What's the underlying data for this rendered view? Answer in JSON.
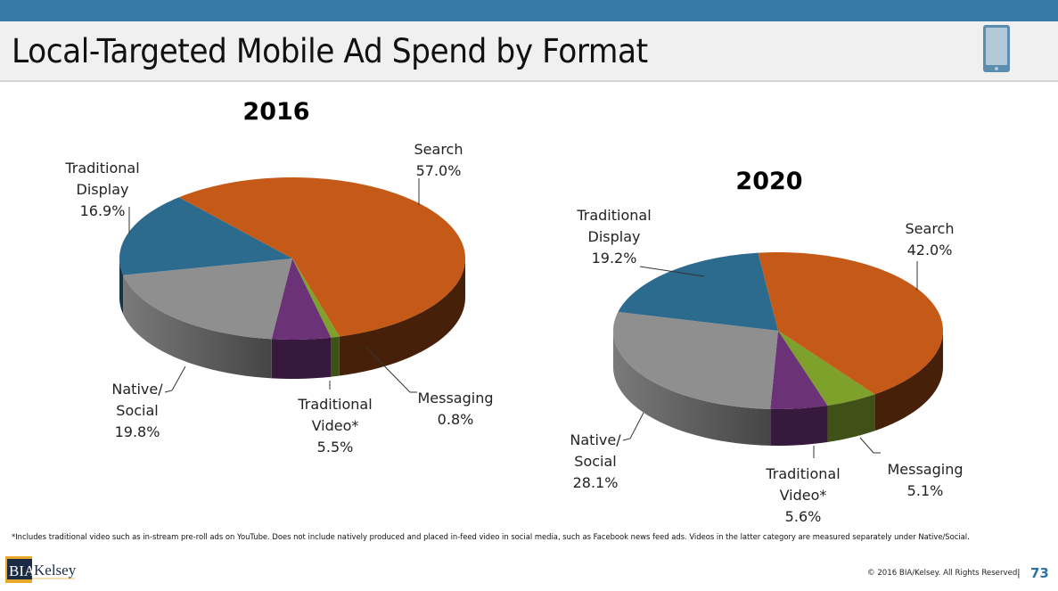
{
  "slide": {
    "title": "Local-Targeted Mobile Ad Spend by Format",
    "header_icon": "mobile-phone-icon",
    "footnote": "*Includes traditional video such as in-stream pre-roll ads on YouTube. Does not include natively produced and placed in-feed video in social media, such as Facebook news feed ads. Videos in the latter category are measured separately under Native/Social.",
    "logo": {
      "left": "BIA",
      "right": "Kelsey"
    },
    "copyright": "© 2016 BIA/Kelsey. All Rights Reserved.",
    "separator": "|",
    "page_number": "73",
    "colors": {
      "topbar": "#367aa8",
      "accent": "#2f72a6"
    }
  },
  "chart_data": [
    {
      "type": "pie",
      "title": "2016",
      "categories": [
        "Search",
        "Messaging",
        "Traditional Video*",
        "Native/ Social",
        "Traditional Display"
      ],
      "values": [
        57.0,
        0.8,
        5.5,
        19.8,
        16.9
      ],
      "labels": [
        {
          "lines": [
            "Search",
            "57.0%"
          ]
        },
        {
          "lines": [
            "Messaging",
            "0.8%"
          ]
        },
        {
          "lines": [
            "Traditional",
            "Video*",
            "5.5%"
          ]
        },
        {
          "lines": [
            "Native/",
            "Social",
            "19.8%"
          ]
        },
        {
          "lines": [
            "Traditional",
            "Display",
            "16.9%"
          ]
        }
      ],
      "colors": [
        "#c55a18",
        "#7ea12b",
        "#6c3277",
        "#8f8f8f",
        "#2c6a8e"
      ],
      "style": "3d"
    },
    {
      "type": "pie",
      "title": "2020",
      "categories": [
        "Search",
        "Messaging",
        "Traditional Video*",
        "Native/ Social",
        "Traditional Display"
      ],
      "values": [
        42.0,
        5.1,
        5.6,
        28.1,
        19.2
      ],
      "labels": [
        {
          "lines": [
            "Search",
            "42.0%"
          ]
        },
        {
          "lines": [
            "Messaging",
            "5.1%"
          ]
        },
        {
          "lines": [
            "Traditional",
            "Video*",
            "5.6%"
          ]
        },
        {
          "lines": [
            "Native/",
            "Social",
            "28.1%"
          ]
        },
        {
          "lines": [
            "Traditional",
            "Display",
            "19.2%"
          ]
        }
      ],
      "colors": [
        "#c55a18",
        "#7ea12b",
        "#6c3277",
        "#8f8f8f",
        "#2c6a8e"
      ],
      "style": "3d"
    }
  ]
}
